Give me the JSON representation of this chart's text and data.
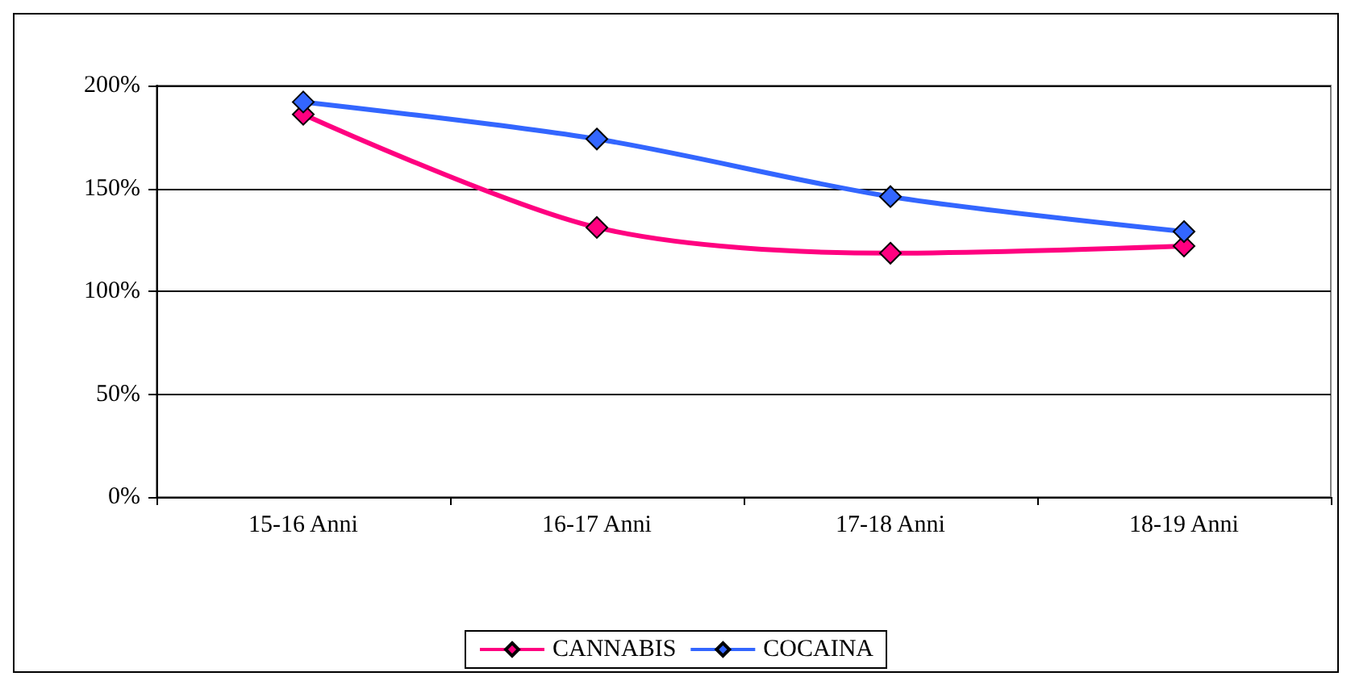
{
  "chart_data": {
    "type": "line",
    "categories": [
      "15-16 Anni",
      "16-17 Anni",
      "17-18 Anni",
      "18-19 Anni"
    ],
    "series": [
      {
        "name": "CANNABIS",
        "color": "#ff0080",
        "values": [
          186,
          131,
          118.5,
          122
        ]
      },
      {
        "name": "COCAINA",
        "color": "#3366ff",
        "values": [
          192,
          174,
          146,
          129
        ]
      }
    ],
    "ylim": [
      0,
      200
    ],
    "yticks": [
      {
        "value": 0,
        "label": "0%"
      },
      {
        "value": 50,
        "label": "50%"
      },
      {
        "value": 100,
        "label": "100%"
      },
      {
        "value": 150,
        "label": "150%"
      },
      {
        "value": 200,
        "label": "200%"
      }
    ],
    "grid": "y",
    "legend": "bottom",
    "marker": "diamond",
    "line_style": "solid"
  }
}
